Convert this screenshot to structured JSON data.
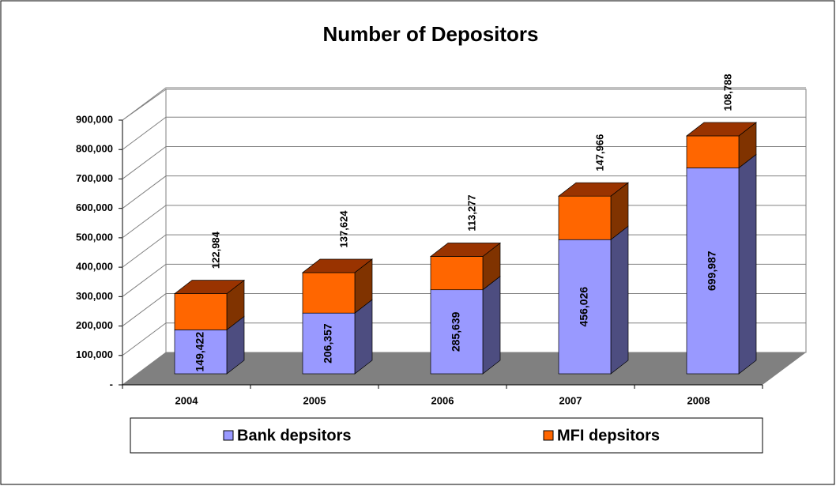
{
  "chart_data": {
    "type": "bar3d_stacked",
    "title": "Number of Depositors",
    "categories": [
      "2004",
      "2005",
      "2006",
      "2007",
      "2008"
    ],
    "series": [
      {
        "name": "Bank depsitors",
        "color": "#9999ff",
        "values": [
          149422,
          206357,
          285639,
          456026,
          699987
        ],
        "value_labels": [
          "149,422",
          "206,357",
          "285,639",
          "456,026",
          "699,987"
        ]
      },
      {
        "name": "MFI depsitors",
        "color": "#ff6600",
        "values": [
          122984,
          137624,
          113277,
          147966,
          108788
        ],
        "value_labels": [
          "122,984",
          "137,624",
          "113,277",
          "147,966",
          "108,788"
        ]
      }
    ],
    "ylim": [
      0,
      900000
    ],
    "yticks": [
      {
        "value": 0,
        "label": "-"
      },
      {
        "value": 100000,
        "label": "100,000"
      },
      {
        "value": 200000,
        "label": "200,000"
      },
      {
        "value": 300000,
        "label": "300,000"
      },
      {
        "value": 400000,
        "label": "400,000"
      },
      {
        "value": 500000,
        "label": "500,000"
      },
      {
        "value": 600000,
        "label": "600,000"
      },
      {
        "value": 700000,
        "label": "700,000"
      },
      {
        "value": 800000,
        "label": "800,000"
      },
      {
        "value": 900000,
        "label": "900,000"
      }
    ],
    "grid": true,
    "legend": "bottom"
  }
}
